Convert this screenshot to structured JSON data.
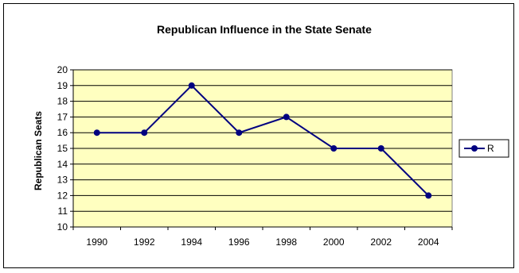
{
  "chart_data": {
    "type": "line",
    "title": "Republican Influence in the State Senate",
    "xlabel": "",
    "ylabel": "Republican Seats",
    "categories": [
      "1990",
      "1992",
      "1994",
      "1996",
      "1998",
      "2000",
      "2002",
      "2004"
    ],
    "series": [
      {
        "name": "R",
        "values": [
          16,
          16,
          19,
          16,
          17,
          15,
          15,
          12
        ]
      }
    ],
    "ylim": [
      10,
      20
    ],
    "ytick_step": 1,
    "grid": true,
    "legend": "right",
    "colors": {
      "plot_background": "#FFFFC0",
      "series_line": "#000080",
      "grid": "#000000"
    }
  }
}
